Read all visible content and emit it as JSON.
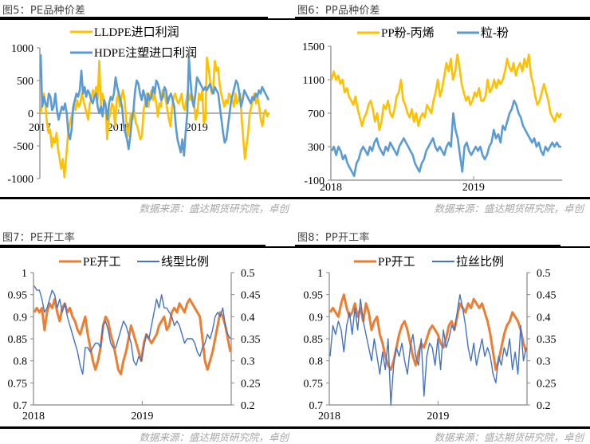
{
  "source_text": "数据来源：盛达期货研究院，卓创",
  "panels": [
    {
      "title": "图5：PE品种价差"
    },
    {
      "title": "图6：PP品种价差"
    },
    {
      "title": "图7：PE开工率"
    },
    {
      "title": "图8：PP开工率"
    }
  ],
  "chart_data": [
    {
      "id": "fig5",
      "type": "line",
      "title": "图5：PE品种价差",
      "xlabel": "",
      "ylabel": "",
      "x_ticks": [
        "2017",
        "2018",
        "2019"
      ],
      "x_tick_positions": [
        0,
        0.343,
        0.683
      ],
      "ylim": [
        -1000,
        1000
      ],
      "y_ticks": [
        1000,
        500,
        0,
        -500,
        -1000
      ],
      "legend": "top-center",
      "grid": false,
      "series": [
        {
          "name": "LLDPE进口利润",
          "color": "#FFC000",
          "values": [
            0,
            150,
            300,
            120,
            -150,
            -300,
            -250,
            -520,
            -380,
            -450,
            -300,
            -550,
            -700,
            -850,
            -700,
            -980,
            -700,
            -400,
            -200,
            -100,
            0,
            150,
            50,
            200,
            100,
            150,
            300,
            200,
            100,
            0,
            -100,
            150,
            200,
            350,
            250,
            400,
            200,
            800,
            100,
            300,
            200,
            150,
            -400,
            -100,
            0,
            150,
            100,
            -200,
            200,
            300,
            100,
            250,
            350,
            200,
            -100,
            -350,
            -200,
            0,
            -100,
            50,
            -150,
            -200,
            -300,
            -400,
            -350,
            50,
            150,
            300,
            100,
            250,
            350,
            200,
            300,
            150,
            -50,
            150,
            100,
            350,
            300,
            200,
            50,
            -100,
            -200,
            100,
            250,
            300,
            200,
            150,
            200,
            300,
            100,
            50,
            200,
            350,
            200,
            300,
            250,
            100,
            -100,
            0,
            300,
            200,
            350,
            -150,
            -100,
            850,
            700,
            500,
            300,
            400,
            800,
            650,
            700,
            450,
            300,
            200,
            100,
            200,
            150,
            300,
            250,
            200,
            100,
            300,
            150,
            200,
            300,
            -100,
            -400,
            -700,
            -500,
            -300,
            0,
            100,
            200,
            300,
            150,
            250,
            100,
            -100,
            -200,
            0,
            50,
            -50,
            0
          ]
        },
        {
          "name": "HDPE注塑进口利润",
          "color": "#5B9BD5",
          "values": [
            900,
            100,
            250,
            150,
            100,
            300,
            250,
            50,
            100,
            300,
            50,
            -100,
            0,
            100,
            50,
            150,
            0,
            -300,
            -400,
            -250,
            100,
            200,
            300,
            250,
            350,
            650,
            300,
            400,
            250,
            350,
            300,
            200,
            150,
            250,
            300,
            100,
            0,
            100,
            -50,
            200,
            100,
            -100,
            150,
            250,
            200,
            300,
            550,
            400,
            300,
            200,
            100,
            -200,
            -300,
            -400,
            -550,
            -350,
            -100,
            50,
            350,
            500,
            450,
            300,
            200,
            350,
            250,
            100,
            300,
            200,
            250,
            400,
            300,
            500,
            450,
            350,
            200,
            250,
            400,
            350,
            150,
            250,
            300,
            200,
            100,
            -200,
            -400,
            -500,
            -600,
            -400,
            -650,
            -300,
            0,
            850,
            500,
            200,
            100,
            300,
            550,
            500,
            450,
            400,
            350,
            400,
            350,
            400,
            450,
            350,
            300,
            400,
            350,
            300,
            100,
            -100,
            -300,
            -450,
            -400,
            -200,
            0,
            200,
            300,
            400,
            500,
            450,
            300,
            100,
            200,
            350,
            300,
            250,
            200,
            150,
            250,
            200,
            300,
            250,
            350,
            300,
            400,
            350,
            300,
            250,
            200
          ]
        }
      ]
    },
    {
      "id": "fig6",
      "type": "line",
      "title": "图6：PP品种价差",
      "xlabel": "",
      "ylabel": "",
      "x_ticks": [
        "2018",
        "2019"
      ],
      "x_tick_positions": [
        0,
        0.617
      ],
      "ylim": [
        -100,
        1500
      ],
      "y_ticks": [
        1500,
        1100,
        700,
        300,
        -100
      ],
      "legend": "top-center",
      "grid": false,
      "series": [
        {
          "name": "PP粉-丙烯",
          "color": "#FFC000",
          "values": [
            1100,
            1200,
            1100,
            1150,
            1050,
            1100,
            950,
            1000,
            900,
            850,
            800,
            900,
            750,
            650,
            550,
            650,
            700,
            800,
            850,
            750,
            600,
            700,
            500,
            600,
            800,
            750,
            850,
            700,
            650,
            750,
            900,
            950,
            1100,
            850,
            800,
            700,
            650,
            750,
            600,
            700,
            550,
            650,
            700,
            650,
            800,
            750,
            700,
            850,
            950,
            1100,
            900,
            1000,
            1150,
            1300,
            1200,
            1350,
            1100,
            1200,
            1400,
            1250,
            1050,
            950,
            850,
            900,
            800,
            850,
            950,
            900,
            1000,
            850,
            850,
            900,
            1100,
            950,
            1000,
            1100,
            1000,
            1100,
            1050,
            1100,
            1200,
            1350,
            1250,
            1200,
            1300,
            1150,
            1250,
            1300,
            1200,
            1350,
            1250,
            1400,
            1150,
            1050,
            900,
            800,
            850,
            950,
            1050,
            950,
            850,
            700,
            650,
            600,
            700,
            650,
            700
          ]
        },
        {
          "name": "粒-粉",
          "color": "#5B9BD5",
          "values": [
            250,
            300,
            200,
            300,
            250,
            150,
            200,
            100,
            50,
            0,
            -50,
            100,
            150,
            250,
            300,
            250,
            200,
            300,
            250,
            350,
            400,
            300,
            250,
            200,
            300,
            250,
            350,
            300,
            250,
            200,
            300,
            350,
            400,
            350,
            300,
            250,
            200,
            100,
            50,
            0,
            100,
            150,
            250,
            300,
            350,
            400,
            300,
            250,
            300,
            250,
            200,
            300,
            350,
            300,
            700,
            500,
            400,
            200,
            0,
            300,
            350,
            250,
            200,
            250,
            300,
            250,
            300,
            200,
            150,
            200,
            300,
            350,
            500,
            400,
            450,
            350,
            550,
            500,
            600,
            700,
            750,
            850,
            800,
            700,
            650,
            550,
            500,
            450,
            400,
            350,
            400,
            300,
            350,
            250,
            200,
            300,
            250,
            300,
            350,
            300,
            350,
            300,
            300
          ]
        }
      ]
    },
    {
      "id": "fig7",
      "type": "line",
      "title": "图7：PE开工率",
      "xlabel": "",
      "ylabel": "",
      "x_ticks": [
        "2018",
        "2019"
      ],
      "x_tick_positions": [
        0,
        0.55
      ],
      "ylim": [
        0.7,
        1
      ],
      "y_ticks": [
        1,
        0.95,
        0.9,
        0.85,
        0.8,
        0.75,
        0.7
      ],
      "y2lim": [
        0.2,
        0.5
      ],
      "y2_ticks": [
        0.5,
        0.45,
        0.4,
        0.35,
        0.3,
        0.25,
        0.2
      ],
      "legend": "top-center",
      "grid": false,
      "series": [
        {
          "name": "PE开工",
          "color": "#ED7D31",
          "axis": "left",
          "values": [
            0.91,
            0.92,
            0.91,
            0.92,
            0.87,
            0.91,
            0.93,
            0.92,
            0.94,
            0.91,
            0.89,
            0.92,
            0.93,
            0.91,
            0.92,
            0.9,
            0.89,
            0.87,
            0.86,
            0.88,
            0.9,
            0.86,
            0.83,
            0.8,
            0.78,
            0.8,
            0.83,
            0.88,
            0.9,
            0.89,
            0.86,
            0.84,
            0.81,
            0.78,
            0.77,
            0.8,
            0.82,
            0.85,
            0.88,
            0.86,
            0.84,
            0.82,
            0.8,
            0.84,
            0.86,
            0.85,
            0.84,
            0.85,
            0.86,
            0.88,
            0.89,
            0.9,
            0.87,
            0.88,
            0.91,
            0.92,
            0.91,
            0.93,
            0.92,
            0.91,
            0.93,
            0.94,
            0.93,
            0.92,
            0.91,
            0.9,
            0.85,
            0.8,
            0.78,
            0.8,
            0.82,
            0.85,
            0.88,
            0.91,
            0.9,
            0.88,
            0.85,
            0.82
          ]
        },
        {
          "name": "线型比例",
          "color": "#4472C4",
          "axis": "right",
          "values": [
            0.47,
            0.46,
            0.46,
            0.44,
            0.41,
            0.42,
            0.44,
            0.46,
            0.45,
            0.42,
            0.44,
            0.41,
            0.43,
            0.4,
            0.38,
            0.36,
            0.34,
            0.32,
            0.29,
            0.27,
            0.33,
            0.33,
            0.32,
            0.33,
            0.34,
            0.34,
            0.33,
            0.38,
            0.39,
            0.37,
            0.34,
            0.33,
            0.33,
            0.35,
            0.37,
            0.39,
            0.38,
            0.36,
            0.34,
            0.3,
            0.29,
            0.31,
            0.3,
            0.33,
            0.36,
            0.35,
            0.38,
            0.41,
            0.44,
            0.42,
            0.45,
            0.42,
            0.42,
            0.41,
            0.4,
            0.38,
            0.39,
            0.38,
            0.36,
            0.34,
            0.35,
            0.35,
            0.35,
            0.34,
            0.32,
            0.31,
            0.33,
            0.34,
            0.36,
            0.35,
            0.37,
            0.4,
            0.41,
            0.4,
            0.42,
            0.38,
            0.36,
            0.35
          ]
        }
      ]
    },
    {
      "id": "fig8",
      "type": "line",
      "title": "图8：PP开工率",
      "xlabel": "",
      "ylabel": "",
      "x_ticks": [
        "2018",
        "2019"
      ],
      "x_tick_positions": [
        0,
        0.55
      ],
      "ylim": [
        0.7,
        1
      ],
      "y_ticks": [
        1,
        0.95,
        0.9,
        0.85,
        0.8,
        0.75,
        0.7
      ],
      "y2lim": [
        0.2,
        0.5
      ],
      "y2_ticks": [
        0.5,
        0.45,
        0.4,
        0.35,
        0.3,
        0.25,
        0.2
      ],
      "legend": "top-center",
      "grid": false,
      "series": [
        {
          "name": "PP开工",
          "color": "#ED7D31",
          "axis": "left",
          "values": [
            0.91,
            0.92,
            0.91,
            0.9,
            0.93,
            0.95,
            0.92,
            0.9,
            0.91,
            0.93,
            0.9,
            0.92,
            0.89,
            0.93,
            0.91,
            0.87,
            0.89,
            0.9,
            0.86,
            0.84,
            0.81,
            0.79,
            0.78,
            0.8,
            0.83,
            0.86,
            0.88,
            0.89,
            0.87,
            0.84,
            0.81,
            0.79,
            0.82,
            0.84,
            0.83,
            0.85,
            0.87,
            0.88,
            0.87,
            0.86,
            0.84,
            0.83,
            0.85,
            0.88,
            0.89,
            0.87,
            0.9,
            0.93,
            0.92,
            0.91,
            0.93,
            0.92,
            0.94,
            0.93,
            0.92,
            0.93,
            0.91,
            0.89,
            0.86,
            0.82,
            0.78,
            0.8,
            0.83,
            0.86,
            0.88,
            0.89,
            0.91,
            0.9,
            0.89,
            0.87,
            0.84,
            0.82
          ]
        },
        {
          "name": "拉丝比例",
          "color": "#4472C4",
          "axis": "right",
          "values": [
            0.31,
            0.38,
            0.36,
            0.39,
            0.37,
            0.32,
            0.38,
            0.41,
            0.36,
            0.42,
            0.37,
            0.44,
            0.39,
            0.36,
            0.33,
            0.3,
            0.35,
            0.31,
            0.27,
            0.32,
            0.28,
            0.35,
            0.2,
            0.29,
            0.33,
            0.31,
            0.34,
            0.3,
            0.27,
            0.33,
            0.36,
            0.31,
            0.29,
            0.35,
            0.22,
            0.31,
            0.34,
            0.33,
            0.29,
            0.35,
            0.28,
            0.37,
            0.33,
            0.35,
            0.38,
            0.37,
            0.41,
            0.45,
            0.42,
            0.38,
            0.33,
            0.3,
            0.34,
            0.29,
            0.32,
            0.35,
            0.31,
            0.33,
            0.31,
            0.27,
            0.25,
            0.31,
            0.29,
            0.33,
            0.31,
            0.35,
            0.28,
            0.32,
            0.27,
            0.38,
            0.3,
            0.33
          ]
        }
      ]
    }
  ]
}
